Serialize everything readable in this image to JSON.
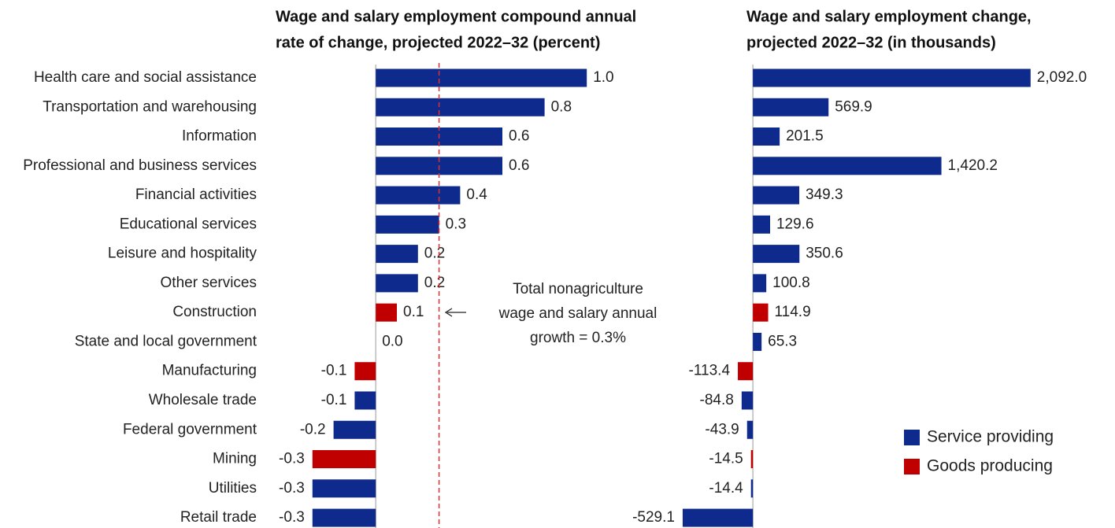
{
  "chart_data": [
    {
      "type": "bar",
      "orientation": "horizontal",
      "title": [
        "Wage and salary employment compound annual",
        "rate of change, projected 2022–32 (percent)"
      ],
      "categories": [
        "Health care and social assistance",
        "Transportation and warehousing",
        "Information",
        "Professional and business services",
        "Financial activities",
        "Educational services",
        "Leisure and hospitality",
        "Other services",
        "Construction",
        "State and local government",
        "Manufacturing",
        "Wholesale trade",
        "Federal government",
        "Mining",
        "Utilities",
        "Retail trade"
      ],
      "series": [
        {
          "color": "#0d2a8c",
          "values": [
            1.0,
            0.8,
            0.6,
            0.6,
            0.4,
            0.3,
            0.2,
            0.2,
            null,
            0.0,
            null,
            -0.1,
            -0.2,
            null,
            -0.3,
            -0.3
          ],
          "value_labels": [
            "1.0",
            "0.8",
            "0.6",
            "0.6",
            "0.4",
            "0.3",
            "0.2",
            "0.2",
            null,
            "0.0",
            null,
            "-0.1",
            "-0.2",
            null,
            "-0.3",
            "-0.3"
          ]
        },
        {
          "color": "#c00000",
          "values": [
            null,
            null,
            null,
            null,
            null,
            null,
            null,
            null,
            0.1,
            null,
            -0.1,
            null,
            null,
            -0.3,
            null,
            null
          ],
          "value_labels": [
            null,
            null,
            null,
            null,
            null,
            null,
            null,
            null,
            "0.1",
            null,
            "-0.1",
            null,
            null,
            "-0.3",
            null,
            null
          ]
        }
      ],
      "xlim": [
        -0.4,
        1.1
      ],
      "reference_line": {
        "value": 0.3,
        "color": "#e03030",
        "label": [
          "Total nonagriculture",
          "wage and salary annual",
          "growth = 0.3%"
        ]
      }
    },
    {
      "type": "bar",
      "orientation": "horizontal",
      "title": [
        "Wage and salary employment change,",
        "projected 2022–32 (in thousands)"
      ],
      "series": [
        {
          "name": "Service providing",
          "color": "#0d2a8c",
          "values": [
            2092.0,
            569.9,
            201.5,
            1420.2,
            349.3,
            129.6,
            350.6,
            100.8,
            null,
            65.3,
            null,
            -84.8,
            -43.9,
            null,
            -14.4,
            -529.1
          ],
          "value_labels": [
            "2,092.0",
            "569.9",
            "201.5",
            "1,420.2",
            "349.3",
            "129.6",
            "350.6",
            "100.8",
            null,
            "65.3",
            null,
            "-84.8",
            "-43.9",
            null,
            "-14.4",
            "-529.1"
          ]
        },
        {
          "name": "Goods producing",
          "color": "#c00000",
          "values": [
            null,
            null,
            null,
            null,
            null,
            null,
            null,
            null,
            114.9,
            null,
            -113.4,
            null,
            null,
            -14.5,
            null,
            null
          ],
          "value_labels": [
            null,
            null,
            null,
            null,
            null,
            null,
            null,
            null,
            "114.9",
            null,
            "-113.4",
            null,
            null,
            "-14.5",
            null,
            null
          ]
        }
      ],
      "xlim": [
        -600,
        2200
      ],
      "legend": "lower right"
    }
  ]
}
